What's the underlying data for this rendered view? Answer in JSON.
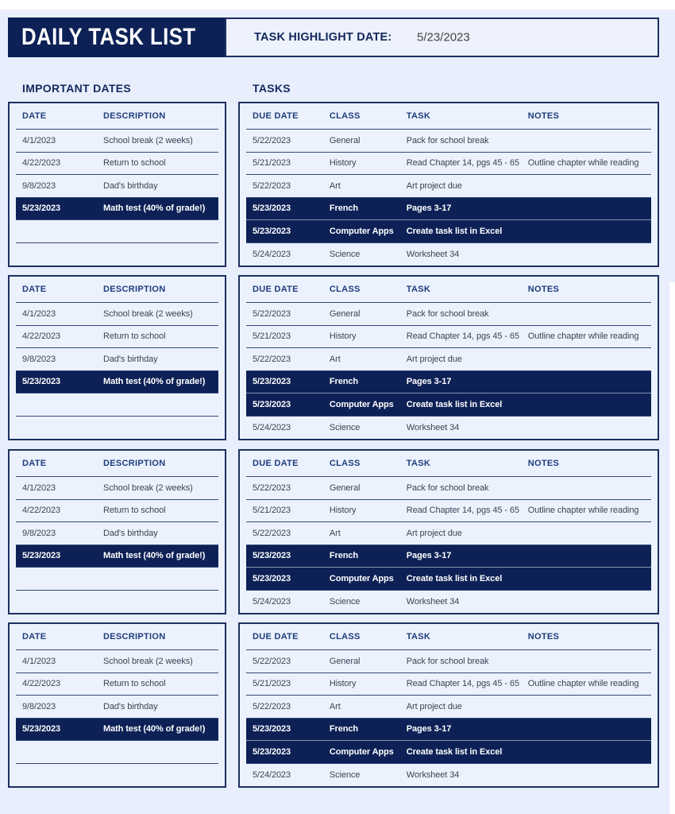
{
  "header": {
    "title": "DAILY TASK LIST",
    "highlight_label": "TASK HIGHLIGHT DATE:",
    "highlight_date": "5/23/2023"
  },
  "sections": {
    "important_dates_heading": "IMPORTANT DATES",
    "tasks_heading": "TASKS"
  },
  "repeats": 4,
  "important_dates": {
    "headers": [
      "DATE",
      "DESCRIPTION"
    ],
    "rows": [
      {
        "date": "4/1/2023",
        "description": "School break (2 weeks)",
        "highlight": false
      },
      {
        "date": "4/22/2023",
        "description": "Return to school",
        "highlight": false
      },
      {
        "date": "9/8/2023",
        "description": "Dad's birthday",
        "highlight": false
      },
      {
        "date": "5/23/2023",
        "description": "Math test (40% of grade!)",
        "highlight": true
      },
      {
        "date": "",
        "description": "",
        "highlight": false
      },
      {
        "date": "",
        "description": "",
        "highlight": false
      }
    ]
  },
  "tasks": {
    "headers": [
      "DUE DATE",
      "CLASS",
      "TASK",
      "NOTES"
    ],
    "rows": [
      {
        "due_date": "5/22/2023",
        "class": "General",
        "task": "Pack for school break",
        "notes": "",
        "highlight": false
      },
      {
        "due_date": "5/21/2023",
        "class": "History",
        "task": "Read Chapter 14, pgs 45 - 65",
        "notes": "Outline chapter while reading",
        "highlight": false
      },
      {
        "due_date": "5/22/2023",
        "class": "Art",
        "task": "Art project due",
        "notes": "",
        "highlight": false
      },
      {
        "due_date": "5/23/2023",
        "class": "French",
        "task": "Pages 3-17",
        "notes": "",
        "highlight": true
      },
      {
        "due_date": "5/23/2023",
        "class": "Computer Apps",
        "task": "Create task list in Excel",
        "notes": "",
        "highlight": true
      },
      {
        "due_date": "5/24/2023",
        "class": "Science",
        "task": "Worksheet 34",
        "notes": "",
        "highlight": false
      }
    ]
  },
  "colors": {
    "navy": "#0d2156",
    "page_background": "#e8eefb",
    "table_background": "#ecf2fd",
    "table_border": "#1d3160",
    "row_line": "#32497c",
    "column_header_text": "#1e3d7d",
    "body_text": "#3b4353",
    "highlight_text": "#ffffff"
  }
}
